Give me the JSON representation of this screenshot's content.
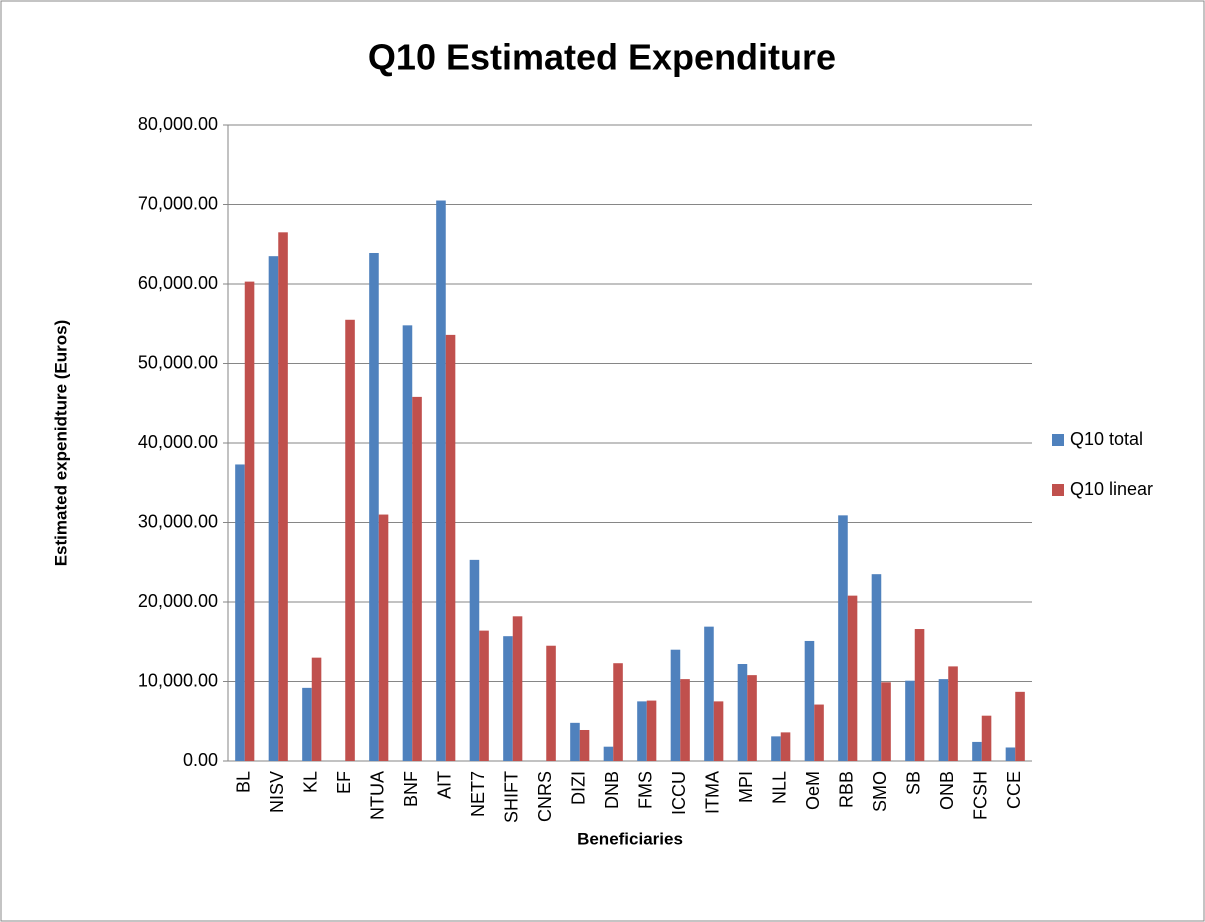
{
  "chart_data": {
    "type": "bar",
    "title": "Q10 Estimated Expenditure",
    "x_label": "Beneficiaries",
    "y_label": "Estimated expenidture (Euros)",
    "categories": [
      "BL",
      "NISV",
      "KL",
      "EF",
      "NTUA",
      "BNF",
      "AIT",
      "NET7",
      "SHIFT",
      "CNRS",
      "DIZI",
      "DNB",
      "FMS",
      "ICCU",
      "ITMA",
      "MPI",
      "NLL",
      "OeM",
      "RBB",
      "SMO",
      "SB",
      "ONB",
      "FCSH",
      "CCE"
    ],
    "series": [
      {
        "name": "Q10 total",
        "color": "#4f81bd",
        "values": [
          37300,
          63500,
          9200,
          0,
          63900,
          54800,
          70500,
          25300,
          15700,
          0,
          4800,
          1800,
          7500,
          14000,
          16900,
          12200,
          3100,
          15100,
          30900,
          23500,
          10100,
          10300,
          2400,
          1700
        ]
      },
      {
        "name": "Q10 linear",
        "color": "#c0504d",
        "values": [
          60300,
          66500,
          13000,
          55500,
          31000,
          45800,
          53600,
          16400,
          18200,
          14500,
          3900,
          12300,
          7600,
          10300,
          7500,
          10800,
          3600,
          7100,
          20800,
          9900,
          16600,
          11900,
          5700,
          8700
        ]
      }
    ],
    "ylim": [
      0,
      80000
    ],
    "yticks": [
      {
        "value": 0,
        "label": "0.00"
      },
      {
        "value": 10000,
        "label": "10,000.00"
      },
      {
        "value": 20000,
        "label": "20,000.00"
      },
      {
        "value": 30000,
        "label": "30,000.00"
      },
      {
        "value": 40000,
        "label": "40,000.00"
      },
      {
        "value": 50000,
        "label": "50,000.00"
      },
      {
        "value": 60000,
        "label": "60,000.00"
      },
      {
        "value": 70000,
        "label": "70,000.00"
      },
      {
        "value": 80000,
        "label": "80,000.00"
      }
    ],
    "grid": true,
    "legend": "right"
  }
}
